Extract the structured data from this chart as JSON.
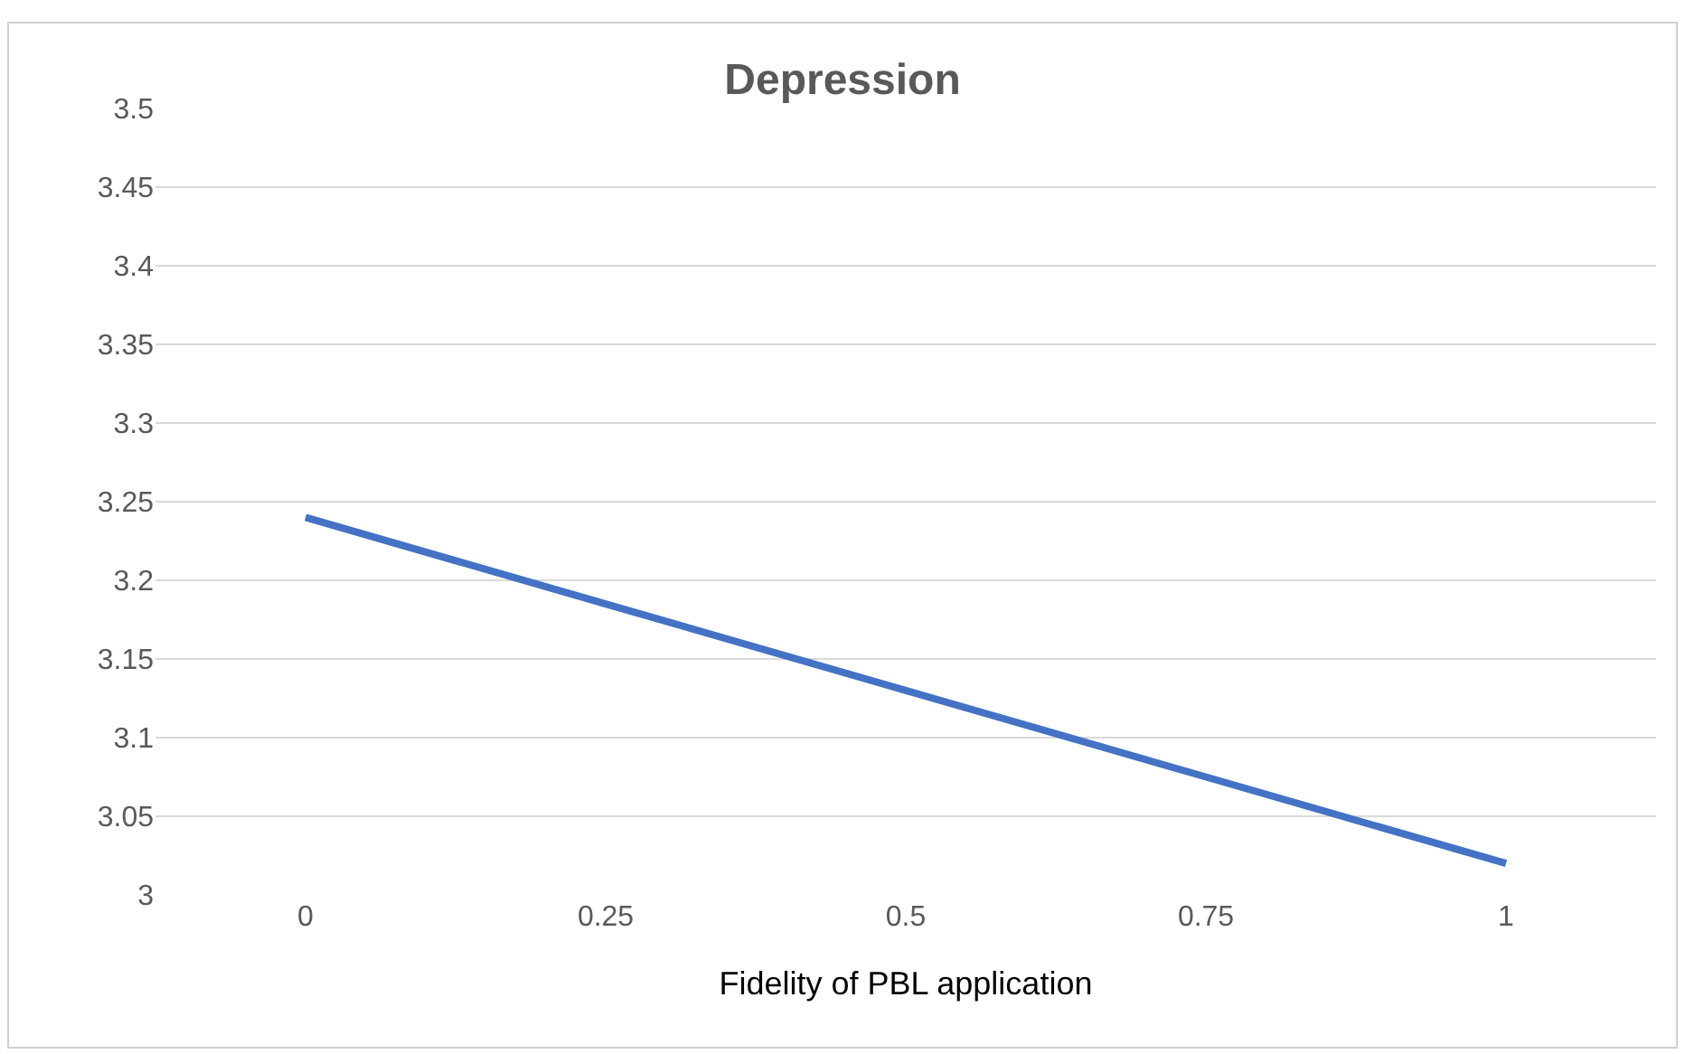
{
  "chart_data": {
    "type": "line",
    "title": "Depression",
    "xlabel": "Fidelity of PBL application",
    "categories": [
      "0",
      "0.25",
      "0.5",
      "0.75",
      "1"
    ],
    "series": [
      {
        "color": "#4472c4",
        "values": [
          3.24,
          3.185,
          3.13,
          3.075,
          3.02
        ]
      }
    ],
    "ylim": [
      3,
      3.5
    ],
    "yticks": [
      3,
      3.05,
      3.1,
      3.15,
      3.2,
      3.25,
      3.3,
      3.35,
      3.4,
      3.45,
      3.5
    ],
    "grid": "y",
    "marker": "none",
    "line_style": "solid"
  }
}
